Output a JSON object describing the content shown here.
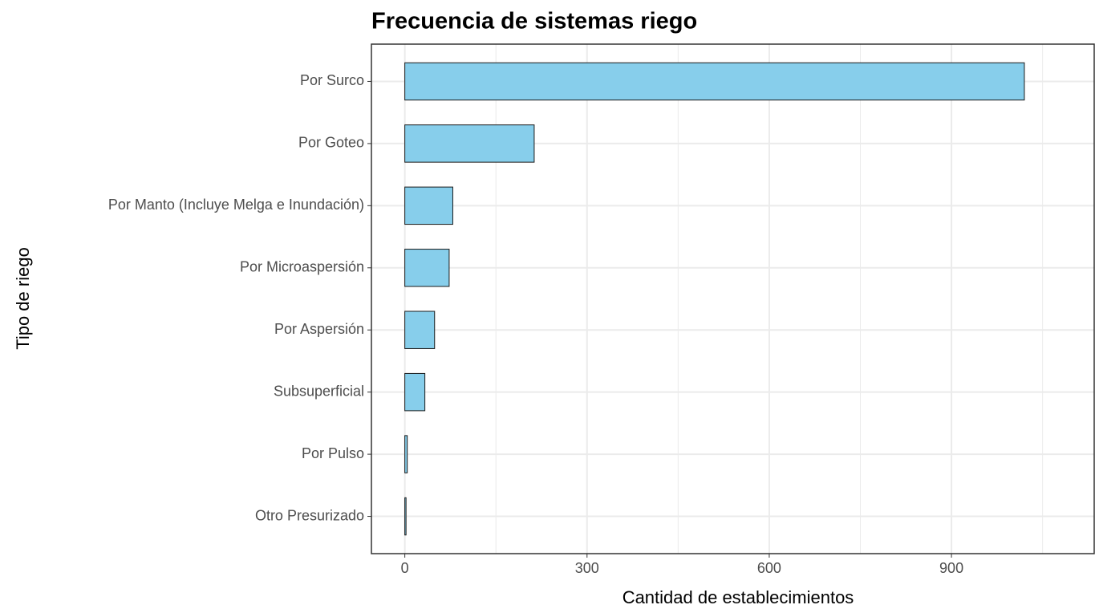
{
  "chart_data": {
    "type": "hbar",
    "title": "Frecuencia de sistemas riego",
    "xlabel": "Cantidad de establecimientos",
    "ylabel": "Tipo de riego",
    "categories": [
      "Por Surco",
      "Por Goteo",
      "Por Manto (Incluye Melga e Inundación)",
      "Por Microaspersión",
      "Por Aspersión",
      "Subsuperficial",
      "Por Pulso",
      "Otro Presurizado"
    ],
    "values": [
      1020,
      213,
      79,
      73,
      49,
      33,
      4,
      2
    ],
    "color": "#87ceeb",
    "edge_color": "#1a1a1a",
    "xlim": [
      -55,
      1135
    ],
    "xticks": [
      0,
      300,
      600,
      900
    ],
    "minor_xticks": [
      150,
      450,
      750,
      1050
    ],
    "grid": true
  }
}
